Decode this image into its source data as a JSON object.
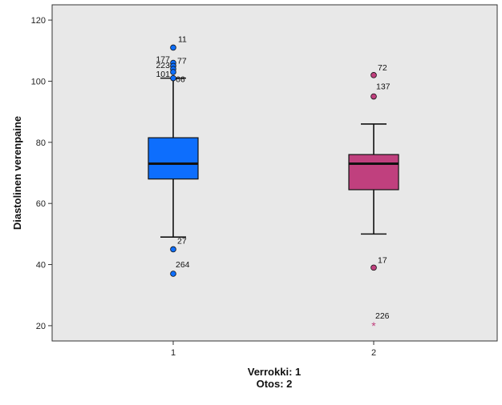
{
  "chart_data": {
    "type": "boxplot",
    "title": "",
    "ylabel": "Diastolinen verenpaine",
    "xlabel_lines": [
      "Verrokki: 1",
      "Otos: 2"
    ],
    "categories": [
      "1",
      "2"
    ],
    "ylim": [
      15,
      125
    ],
    "yticks": [
      20,
      40,
      60,
      80,
      100,
      120
    ],
    "grid": false,
    "background": "#e8e8e8",
    "boxes": [
      {
        "category": "1",
        "color": "#0d6efd",
        "whisker_low": 49,
        "q1": 68,
        "median": 73,
        "q3": 81.5,
        "whisker_high": 101,
        "outliers": [
          {
            "label": "11",
            "value": 111,
            "kind": "circle"
          },
          {
            "label": "177",
            "value": 106,
            "kind": "circle"
          },
          {
            "label": "77",
            "value": 105,
            "kind": "circle"
          },
          {
            "label": "223",
            "value": 104,
            "kind": "circle"
          },
          {
            "label": "101",
            "value": 103,
            "kind": "circle"
          },
          {
            "label": "66",
            "value": 101,
            "kind": "circle"
          },
          {
            "label": "27",
            "value": 45,
            "kind": "circle"
          },
          {
            "label": "264",
            "value": 37,
            "kind": "circle"
          }
        ]
      },
      {
        "category": "2",
        "color": "#c0407e",
        "whisker_low": 50,
        "q1": 64.5,
        "median": 73,
        "q3": 76,
        "whisker_high": 86,
        "outliers": [
          {
            "label": "72",
            "value": 102,
            "kind": "circle"
          },
          {
            "label": "137",
            "value": 95,
            "kind": "circle"
          },
          {
            "label": "17",
            "value": 39,
            "kind": "circle"
          },
          {
            "label": "226",
            "value": 20,
            "kind": "star"
          }
        ]
      }
    ]
  }
}
